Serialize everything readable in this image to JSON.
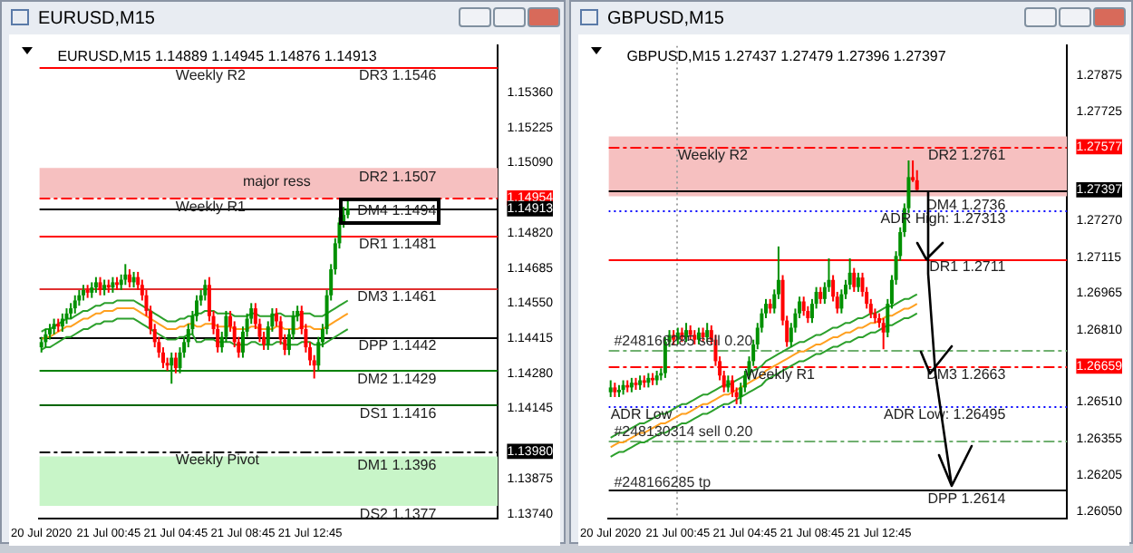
{
  "chart_data": [
    {
      "type": "candlestick",
      "title": "EURUSD,M15",
      "subtitle": "EURUSD,M15 1.14889 1.14945 1.14876 1.14913",
      "categories": [
        "20 Jul 2020",
        null,
        null,
        null,
        null,
        null,
        null,
        null,
        null,
        null,
        null,
        null,
        null,
        null,
        null,
        null,
        "21 Jul 00:45",
        null,
        null,
        null,
        null,
        null,
        null,
        null,
        null,
        null,
        null,
        null,
        null,
        null,
        null,
        null,
        "21 Jul 04:45",
        null,
        null,
        null,
        null,
        null,
        null,
        null,
        null,
        null,
        null,
        null,
        null,
        null,
        null,
        null,
        "21 Jul 08:45",
        null,
        null,
        null,
        null,
        null,
        null,
        null,
        null,
        null,
        null,
        null,
        null,
        null,
        null,
        null,
        "21 Jul 12:45",
        null,
        null,
        null,
        null,
        null,
        null,
        null,
        null,
        null
      ],
      "ohlc": [
        [
          1.1438,
          1.1442,
          1.1436,
          1.144
        ],
        [
          1.144,
          1.1445,
          1.1438,
          1.1443
        ],
        [
          1.1443,
          1.1447,
          1.1441,
          1.1445
        ],
        [
          1.1445,
          1.1449,
          1.1443,
          1.1447
        ],
        [
          1.1447,
          1.1449,
          1.1444,
          1.1446
        ],
        [
          1.1446,
          1.1451,
          1.1444,
          1.1449
        ],
        [
          1.1449,
          1.1453,
          1.1447,
          1.1451
        ],
        [
          1.1451,
          1.1455,
          1.1449,
          1.1453
        ],
        [
          1.1453,
          1.1458,
          1.1451,
          1.1456
        ],
        [
          1.1456,
          1.146,
          1.1454,
          1.1458
        ],
        [
          1.1458,
          1.1462,
          1.1456,
          1.146
        ],
        [
          1.146,
          1.1462,
          1.1457,
          1.1459
        ],
        [
          1.1459,
          1.1463,
          1.1457,
          1.1461
        ],
        [
          1.1461,
          1.1465,
          1.1459,
          1.1463
        ],
        [
          1.1463,
          1.1465,
          1.1458,
          1.146
        ],
        [
          1.146,
          1.1464,
          1.1458,
          1.1462
        ],
        [
          1.1462,
          1.1464,
          1.1459,
          1.1461
        ],
        [
          1.1461,
          1.1465,
          1.1459,
          1.1463
        ],
        [
          1.1463,
          1.1465,
          1.146,
          1.1462
        ],
        [
          1.1462,
          1.1466,
          1.146,
          1.1464
        ],
        [
          1.1464,
          1.147,
          1.1462,
          1.1466
        ],
        [
          1.1466,
          1.1468,
          1.1461,
          1.1463
        ],
        [
          1.1463,
          1.1467,
          1.1461,
          1.1465
        ],
        [
          1.1465,
          1.1467,
          1.146,
          1.1462
        ],
        [
          1.1462,
          1.1464,
          1.1456,
          1.1458
        ],
        [
          1.1458,
          1.146,
          1.145,
          1.1452
        ],
        [
          1.1452,
          1.1454,
          1.1443,
          1.1445
        ],
        [
          1.1445,
          1.1447,
          1.1438,
          1.144
        ],
        [
          1.144,
          1.1442,
          1.1434,
          1.1436
        ],
        [
          1.1436,
          1.1438,
          1.143,
          1.1432
        ],
        [
          1.1432,
          1.1434,
          1.1429,
          1.1431
        ],
        [
          1.1431,
          1.1436,
          1.1424,
          1.1434
        ],
        [
          1.1434,
          1.1436,
          1.1428,
          1.143
        ],
        [
          1.143,
          1.1438,
          1.1428,
          1.1436
        ],
        [
          1.1436,
          1.1442,
          1.1434,
          1.144
        ],
        [
          1.144,
          1.1447,
          1.1438,
          1.1445
        ],
        [
          1.1445,
          1.1452,
          1.1443,
          1.145
        ],
        [
          1.145,
          1.1458,
          1.1448,
          1.1456
        ],
        [
          1.1456,
          1.146,
          1.1454,
          1.1458
        ],
        [
          1.1458,
          1.1464,
          1.1456,
          1.1462
        ],
        [
          1.1462,
          1.1465,
          1.1448,
          1.145
        ],
        [
          1.145,
          1.1452,
          1.1443,
          1.1445
        ],
        [
          1.1445,
          1.1447,
          1.1436,
          1.1438
        ],
        [
          1.1438,
          1.1444,
          1.1436,
          1.1442
        ],
        [
          1.1442,
          1.1452,
          1.144,
          1.145
        ],
        [
          1.145,
          1.1452,
          1.1444,
          1.1446
        ],
        [
          1.1446,
          1.1448,
          1.1438,
          1.144
        ],
        [
          1.144,
          1.1442,
          1.1434,
          1.1436
        ],
        [
          1.1436,
          1.1446,
          1.1434,
          1.1444
        ],
        [
          1.1444,
          1.1451,
          1.1442,
          1.1449
        ],
        [
          1.1449,
          1.1455,
          1.1447,
          1.1453
        ],
        [
          1.1453,
          1.1455,
          1.1445,
          1.1447
        ],
        [
          1.1447,
          1.1449,
          1.144,
          1.1442
        ],
        [
          1.1442,
          1.1444,
          1.1437,
          1.1439
        ],
        [
          1.1439,
          1.1448,
          1.1437,
          1.1446
        ],
        [
          1.1446,
          1.1453,
          1.1444,
          1.1451
        ],
        [
          1.1451,
          1.1453,
          1.1446,
          1.1448
        ],
        [
          1.1448,
          1.145,
          1.1439,
          1.1441
        ],
        [
          1.1441,
          1.1443,
          1.1435,
          1.1437
        ],
        [
          1.1437,
          1.1445,
          1.1435,
          1.1443
        ],
        [
          1.1443,
          1.1452,
          1.1441,
          1.145
        ],
        [
          1.145,
          1.1454,
          1.1448,
          1.1452
        ],
        [
          1.1452,
          1.1454,
          1.1443,
          1.1445
        ],
        [
          1.1445,
          1.1447,
          1.1436,
          1.1438
        ],
        [
          1.1438,
          1.144,
          1.1431,
          1.1433
        ],
        [
          1.1433,
          1.1435,
          1.1426,
          1.1431
        ],
        [
          1.1431,
          1.1442,
          1.1429,
          1.144
        ],
        [
          1.144,
          1.1447,
          1.1438,
          1.1445
        ],
        [
          1.1445,
          1.146,
          1.1443,
          1.1458
        ],
        [
          1.1458,
          1.147,
          1.1456,
          1.1468
        ],
        [
          1.1468,
          1.148,
          1.1466,
          1.1478
        ],
        [
          1.1478,
          1.1488,
          1.1476,
          1.1486
        ],
        [
          1.1486,
          1.1492,
          1.1484,
          1.14889
        ],
        [
          1.14889,
          1.14945,
          1.14876,
          1.14913
        ]
      ],
      "colors": [
        "#009000",
        "#009000",
        "#009000",
        "#009000",
        "#ff0000",
        "#009000",
        "#009000",
        "#009000",
        "#009000",
        "#009000",
        "#009000",
        "#ff0000",
        "#009000",
        "#009000",
        "#ff0000",
        "#009000",
        "#ff0000",
        "#009000",
        "#ff0000",
        "#009000",
        "#009000",
        "#ff0000",
        "#009000",
        "#ff0000",
        "#ff0000",
        "#ff0000",
        "#ff0000",
        "#ff0000",
        "#ff0000",
        "#ff0000",
        "#ff0000",
        "#009000",
        "#ff0000",
        "#009000",
        "#009000",
        "#009000",
        "#009000",
        "#009000",
        "#009000",
        "#009000",
        "#ff0000",
        "#ff0000",
        "#ff0000",
        "#009000",
        "#009000",
        "#ff0000",
        "#ff0000",
        "#ff0000",
        "#009000",
        "#009000",
        "#009000",
        "#ff0000",
        "#ff0000",
        "#ff0000",
        "#009000",
        "#009000",
        "#ff0000",
        "#ff0000",
        "#ff0000",
        "#009000",
        "#009000",
        "#009000",
        "#ff0000",
        "#ff0000",
        "#ff0000",
        "#ff0000",
        "#009000",
        "#009000",
        "#009000",
        "#009000",
        "#009000",
        "#009000",
        "#009000",
        "#009000"
      ],
      "series": [
        {
          "type": "line",
          "color": "#2ca02c",
          "values": [
            1.1444,
            1.1445,
            1.1445,
            1.1446,
            1.1447,
            1.1448,
            1.1449,
            1.1449,
            1.145,
            1.1451,
            1.1452,
            1.1452,
            1.1453,
            1.1454,
            1.1454,
            1.1455,
            1.1455,
            1.1455,
            1.1456,
            1.1456,
            1.1456,
            1.1456,
            1.1456,
            1.1455,
            1.1454,
            1.1453,
            1.1452,
            1.1451,
            1.145,
            1.1449,
            1.1448,
            1.1448,
            1.1448,
            1.1449,
            1.1449,
            1.145,
            1.145,
            1.1451,
            1.1451,
            1.1452,
            1.1452,
            1.1452,
            1.1451,
            1.1451,
            1.1451,
            1.1451,
            1.145,
            1.145,
            1.145,
            1.145,
            1.1451,
            1.1451,
            1.145,
            1.145,
            1.145,
            1.145,
            1.1451,
            1.1451,
            1.145,
            1.145,
            1.145,
            1.145,
            1.1451,
            1.1451,
            1.1451,
            1.145,
            1.145,
            1.145,
            1.1451,
            1.1452,
            1.1453,
            1.1454,
            1.1455,
            1.1456
          ]
        },
        {
          "type": "line",
          "color": "#ffa020",
          "values": [
            1.1441,
            1.1442,
            1.1442,
            1.1443,
            1.1444,
            1.1445,
            1.1446,
            1.1446,
            1.1447,
            1.1448,
            1.1449,
            1.1449,
            1.145,
            1.1451,
            1.1451,
            1.1452,
            1.1452,
            1.1452,
            1.1453,
            1.1453,
            1.1453,
            1.1453,
            1.1453,
            1.1452,
            1.1451,
            1.145,
            1.1449,
            1.1448,
            1.1447,
            1.1446,
            1.1445,
            1.1445,
            1.1445,
            1.1446,
            1.1446,
            1.1447,
            1.1447,
            1.1446,
            1.1446,
            1.1447,
            1.1447,
            1.1447,
            1.1446,
            1.1446,
            1.1446,
            1.1446,
            1.1445,
            1.1445,
            1.1445,
            1.1445,
            1.1446,
            1.1446,
            1.1445,
            1.1445,
            1.1445,
            1.1445,
            1.1446,
            1.1446,
            1.1445,
            1.1445,
            1.1445,
            1.1445,
            1.1446,
            1.1446,
            1.1446,
            1.1445,
            1.1445,
            1.1445,
            1.1446,
            1.1447,
            1.1448,
            1.1449,
            1.145,
            1.1451
          ]
        },
        {
          "type": "line",
          "color": "#2ca02c",
          "values": [
            1.1437,
            1.1438,
            1.1438,
            1.1439,
            1.144,
            1.1441,
            1.1442,
            1.1442,
            1.1443,
            1.1444,
            1.1445,
            1.1445,
            1.1446,
            1.1447,
            1.1447,
            1.1448,
            1.1448,
            1.1448,
            1.1449,
            1.1449,
            1.1449,
            1.1449,
            1.1449,
            1.1448,
            1.1447,
            1.1446,
            1.1445,
            1.1444,
            1.1443,
            1.1442,
            1.1441,
            1.1441,
            1.1441,
            1.1442,
            1.1442,
            1.1443,
            1.1443,
            1.144,
            1.144,
            1.1441,
            1.1441,
            1.1441,
            1.144,
            1.144,
            1.144,
            1.144,
            1.1439,
            1.1439,
            1.1439,
            1.1439,
            1.144,
            1.144,
            1.1439,
            1.1439,
            1.1439,
            1.1439,
            1.144,
            1.144,
            1.1439,
            1.1439,
            1.1439,
            1.1439,
            1.144,
            1.144,
            1.144,
            1.1439,
            1.1439,
            1.1439,
            1.144,
            1.1441,
            1.1442,
            1.1443,
            1.1444,
            1.1445
          ]
        }
      ],
      "ylim": [
        1.1372,
        1.1554
      ],
      "yticks": [
        {
          "value": 1.1536,
          "label": "1.15360"
        },
        1.15225,
        {
          "value": 1.1509,
          "label": "1.15090"
        },
        {
          "value": 1.14954,
          "label": "1.14954"
        },
        {
          "value": 1.14913,
          "label": "1.14913"
        },
        {
          "value": 1.1482,
          "label": "1.14820"
        },
        1.14685,
        {
          "value": 1.1455,
          "label": "1.14550"
        },
        1.14415,
        {
          "value": 1.1428,
          "label": "1.14280"
        },
        1.14145,
        {
          "value": 1.1398,
          "label": "1.13980"
        },
        1.13875,
        {
          "value": 1.1374,
          "label": "1.13740"
        }
      ],
      "bands": [
        {
          "axis": "y",
          "from": 1.14954,
          "to": 1.1507,
          "color": "#f6c0c0"
        },
        {
          "axis": "y",
          "from": 1.1377,
          "to": 1.1396,
          "color": "#c8f5c8"
        }
      ],
      "ref_lines": [
        {
          "axis": "y",
          "value": 1.1546,
          "color": "#ff0000",
          "line_style": "solid"
        },
        {
          "axis": "y",
          "value": 1.14954,
          "color": "#ff0000",
          "line_style": "dashed"
        },
        {
          "axis": "y",
          "value": 1.14913,
          "color": "#000000",
          "line_style": "solid"
        },
        {
          "axis": "y",
          "value": 1.1481,
          "color": "#ff0000",
          "line_style": "solid"
        },
        {
          "axis": "y",
          "value": 1.1461,
          "color": "#e03030",
          "line_style": "solid"
        },
        {
          "axis": "y",
          "value": 1.1442,
          "color": "#000000",
          "line_style": "solid"
        },
        {
          "axis": "y",
          "value": 1.1429,
          "color": "#008000",
          "line_style": "solid"
        },
        {
          "axis": "y",
          "value": 1.1416,
          "color": "#006400",
          "line_style": "solid"
        },
        {
          "axis": "y",
          "value": 1.1398,
          "color": "#000000",
          "line_style": "dashed"
        }
      ],
      "annotations": [
        {
          "text": "Weekly R2",
          "x": "21 Jul 04:45",
          "y": 1.1546
        },
        {
          "text": "DR3 1.1546",
          "y": 1.1546
        },
        {
          "text": "DR2 1.1507",
          "y": 1.1507
        },
        {
          "text": "major ress",
          "x": "21 Jul 08:45",
          "y": 1.1505
        },
        {
          "text": "Weekly R1",
          "x": "21 Jul 04:45",
          "y": 1.14954
        },
        {
          "text": "DM4 1.1494",
          "y": 1.1494
        },
        {
          "text": "DR1 1.1481",
          "y": 1.1481
        },
        {
          "text": "DM3 1.1461",
          "y": 1.1461
        },
        {
          "text": "DPP 1.1442",
          "y": 1.1442
        },
        {
          "text": "DM2 1.1429",
          "y": 1.1429
        },
        {
          "text": "DS1 1.1416",
          "y": 1.1416
        },
        {
          "text": "Weekly Pivot",
          "x": "21 Jul 04:45",
          "y": 1.1398
        },
        {
          "text": "DM1 1.1396",
          "y": 1.1396
        },
        {
          "text": "DS2 1.1377",
          "y": 1.1377
        }
      ]
    },
    {
      "type": "candlestick",
      "title": "GBPUSD,M15",
      "subtitle": "GBPUSD,M15 1.27437 1.27479 1.27396 1.27397",
      "categories": [
        "20 Jul 2020",
        null,
        null,
        null,
        null,
        null,
        null,
        null,
        null,
        null,
        null,
        null,
        null,
        null,
        null,
        null,
        "21 Jul 00:45",
        null,
        null,
        null,
        null,
        null,
        null,
        null,
        null,
        null,
        null,
        null,
        null,
        null,
        null,
        null,
        "21 Jul 04:45",
        null,
        null,
        null,
        null,
        null,
        null,
        null,
        null,
        null,
        null,
        null,
        null,
        null,
        null,
        null,
        "21 Jul 08:45",
        null,
        null,
        null,
        null,
        null,
        null,
        null,
        null,
        null,
        null,
        null,
        null,
        null,
        null,
        null,
        "21 Jul 12:45",
        null,
        null,
        null,
        null,
        null,
        null,
        null,
        null,
        null
      ],
      "ohlc": [
        [
          1.2655,
          1.266,
          1.2653,
          1.2657
        ],
        [
          1.2657,
          1.2659,
          1.2653,
          1.2655
        ],
        [
          1.2655,
          1.2658,
          1.2653,
          1.2656
        ],
        [
          1.2656,
          1.266,
          1.2654,
          1.2658
        ],
        [
          1.2658,
          1.266,
          1.2655,
          1.2657
        ],
        [
          1.2657,
          1.2661,
          1.2655,
          1.2659
        ],
        [
          1.2659,
          1.2661,
          1.2656,
          1.2658
        ],
        [
          1.2658,
          1.2662,
          1.2656,
          1.266
        ],
        [
          1.266,
          1.2662,
          1.2657,
          1.2659
        ],
        [
          1.2659,
          1.2663,
          1.2657,
          1.2661
        ],
        [
          1.2661,
          1.2663,
          1.2658,
          1.266
        ],
        [
          1.266,
          1.2664,
          1.2658,
          1.2662
        ],
        [
          1.2662,
          1.2665,
          1.266,
          1.2663
        ],
        [
          1.2663,
          1.2678,
          1.2661,
          1.2676
        ],
        [
          1.2676,
          1.2681,
          1.2674,
          1.2679
        ],
        [
          1.2679,
          1.2681,
          1.2675,
          1.2677
        ],
        [
          1.2677,
          1.2682,
          1.2675,
          1.268
        ],
        [
          1.268,
          1.2682,
          1.2676,
          1.2678
        ],
        [
          1.2678,
          1.2684,
          1.2676,
          1.2681
        ],
        [
          1.2681,
          1.2683,
          1.2677,
          1.2679
        ],
        [
          1.2679,
          1.2681,
          1.2675,
          1.2677
        ],
        [
          1.2677,
          1.2682,
          1.2675,
          1.268
        ],
        [
          1.268,
          1.2682,
          1.2676,
          1.2678
        ],
        [
          1.2678,
          1.2684,
          1.2676,
          1.2681
        ],
        [
          1.2681,
          1.2683,
          1.2675,
          1.2677
        ],
        [
          1.2677,
          1.2679,
          1.2666,
          1.2668
        ],
        [
          1.2668,
          1.267,
          1.266,
          1.2662
        ],
        [
          1.2662,
          1.2664,
          1.2655,
          1.2657
        ],
        [
          1.2657,
          1.2662,
          1.2655,
          1.266
        ],
        [
          1.266,
          1.2662,
          1.2653,
          1.2655
        ],
        [
          1.2655,
          1.2657,
          1.265,
          1.2653
        ],
        [
          1.2653,
          1.2659,
          1.265,
          1.2657
        ],
        [
          1.2657,
          1.2664,
          1.2655,
          1.2662
        ],
        [
          1.2662,
          1.267,
          1.266,
          1.2668
        ],
        [
          1.2668,
          1.2677,
          1.2666,
          1.2675
        ],
        [
          1.2675,
          1.2684,
          1.2673,
          1.2682
        ],
        [
          1.2682,
          1.269,
          1.268,
          1.2688
        ],
        [
          1.2688,
          1.2694,
          1.2686,
          1.2692
        ],
        [
          1.2692,
          1.2694,
          1.2688,
          1.269
        ],
        [
          1.269,
          1.2698,
          1.2688,
          1.2696
        ],
        [
          1.2696,
          1.2716,
          1.2694,
          1.2702
        ],
        [
          1.2702,
          1.2704,
          1.2683,
          1.2685
        ],
        [
          1.2685,
          1.2687,
          1.2674,
          1.2676
        ],
        [
          1.2676,
          1.2684,
          1.2674,
          1.2682
        ],
        [
          1.2682,
          1.269,
          1.268,
          1.2688
        ],
        [
          1.2688,
          1.2695,
          1.2686,
          1.2693
        ],
        [
          1.2693,
          1.2695,
          1.2687,
          1.2689
        ],
        [
          1.2689,
          1.2691,
          1.2684,
          1.2686
        ],
        [
          1.2686,
          1.2694,
          1.2684,
          1.2692
        ],
        [
          1.2692,
          1.2699,
          1.269,
          1.2697
        ],
        [
          1.2697,
          1.2699,
          1.2692,
          1.2694
        ],
        [
          1.2694,
          1.2701,
          1.2692,
          1.2699
        ],
        [
          1.2699,
          1.2711,
          1.2697,
          1.2702
        ],
        [
          1.2702,
          1.2704,
          1.2693,
          1.2695
        ],
        [
          1.2695,
          1.2697,
          1.2688,
          1.269
        ],
        [
          1.269,
          1.2698,
          1.2688,
          1.2696
        ],
        [
          1.2696,
          1.2702,
          1.2694,
          1.27
        ],
        [
          1.27,
          1.2711,
          1.2698,
          1.2705
        ],
        [
          1.2705,
          1.2707,
          1.2697,
          1.2699
        ],
        [
          1.2699,
          1.2705,
          1.2697,
          1.2703
        ],
        [
          1.2703,
          1.2705,
          1.2695,
          1.2697
        ],
        [
          1.2697,
          1.2699,
          1.269,
          1.2692
        ],
        [
          1.2692,
          1.2694,
          1.2686,
          1.2688
        ],
        [
          1.2688,
          1.269,
          1.2684,
          1.2686
        ],
        [
          1.2686,
          1.2688,
          1.2682,
          1.2684
        ],
        [
          1.2684,
          1.2686,
          1.2673,
          1.268
        ],
        [
          1.268,
          1.2694,
          1.2678,
          1.2692
        ],
        [
          1.2692,
          1.2704,
          1.269,
          1.2702
        ],
        [
          1.2702,
          1.2714,
          1.27,
          1.2712
        ],
        [
          1.2712,
          1.2724,
          1.271,
          1.2722
        ],
        [
          1.2722,
          1.2734,
          1.272,
          1.2732
        ],
        [
          1.2732,
          1.2752,
          1.273,
          1.2745
        ],
        [
          1.2745,
          1.2752,
          1.2743,
          1.27437
        ],
        [
          1.27437,
          1.27479,
          1.27396,
          1.27397
        ]
      ],
      "colors": [
        "#009000",
        "#ff0000",
        "#009000",
        "#009000",
        "#ff0000",
        "#009000",
        "#ff0000",
        "#009000",
        "#ff0000",
        "#009000",
        "#ff0000",
        "#009000",
        "#009000",
        "#009000",
        "#009000",
        "#ff0000",
        "#009000",
        "#ff0000",
        "#009000",
        "#ff0000",
        "#ff0000",
        "#009000",
        "#ff0000",
        "#009000",
        "#ff0000",
        "#ff0000",
        "#ff0000",
        "#ff0000",
        "#009000",
        "#ff0000",
        "#ff0000",
        "#009000",
        "#009000",
        "#009000",
        "#009000",
        "#009000",
        "#009000",
        "#009000",
        "#ff0000",
        "#009000",
        "#009000",
        "#ff0000",
        "#ff0000",
        "#009000",
        "#009000",
        "#009000",
        "#ff0000",
        "#ff0000",
        "#009000",
        "#009000",
        "#ff0000",
        "#009000",
        "#009000",
        "#ff0000",
        "#ff0000",
        "#009000",
        "#009000",
        "#009000",
        "#ff0000",
        "#009000",
        "#ff0000",
        "#ff0000",
        "#ff0000",
        "#ff0000",
        "#ff0000",
        "#ff0000",
        "#009000",
        "#009000",
        "#009000",
        "#009000",
        "#009000",
        "#009000",
        "#ff0000",
        "#ff0000"
      ],
      "series": [
        {
          "type": "line",
          "color": "#2ca02c",
          "values": [
            1.2636,
            1.2637,
            1.2638,
            1.2638,
            1.2639,
            1.264,
            1.2641,
            1.2642,
            1.2642,
            1.2643,
            1.2644,
            1.2645,
            1.2646,
            1.2646,
            1.2647,
            1.2648,
            1.2649,
            1.265,
            1.265,
            1.2651,
            1.2652,
            1.2653,
            1.2654,
            1.2654,
            1.2655,
            1.2656,
            1.2657,
            1.2658,
            1.2658,
            1.2659,
            1.266,
            1.2661,
            1.2662,
            1.2663,
            1.2664,
            1.2665,
            1.2666,
            1.2668,
            1.2669,
            1.267,
            1.2671,
            1.2672,
            1.2673,
            1.2674,
            1.2675,
            1.2676,
            1.2676,
            1.2677,
            1.2678,
            1.2679,
            1.2679,
            1.268,
            1.2681,
            1.2682,
            1.2682,
            1.2683,
            1.2684,
            1.2684,
            1.2685,
            1.2686,
            1.2686,
            1.2687,
            1.2688,
            1.2688,
            1.2689,
            1.269,
            1.2691,
            1.2691,
            1.2692,
            1.2693,
            1.2694,
            1.2694,
            1.2695,
            1.2696
          ]
        },
        {
          "type": "line",
          "color": "#ffa020",
          "values": [
            1.2632,
            1.2633,
            1.2634,
            1.2634,
            1.2635,
            1.2636,
            1.2637,
            1.2638,
            1.2638,
            1.2639,
            1.264,
            1.2641,
            1.2642,
            1.2642,
            1.2643,
            1.2644,
            1.2645,
            1.2646,
            1.2646,
            1.2647,
            1.2648,
            1.2649,
            1.265,
            1.265,
            1.2651,
            1.2652,
            1.2653,
            1.2654,
            1.2654,
            1.2655,
            1.2656,
            1.2657,
            1.2658,
            1.2659,
            1.266,
            1.2661,
            1.2662,
            1.2664,
            1.2665,
            1.2666,
            1.2667,
            1.2668,
            1.2669,
            1.267,
            1.2671,
            1.2672,
            1.2672,
            1.2673,
            1.2674,
            1.2675,
            1.2675,
            1.2676,
            1.2677,
            1.2678,
            1.2678,
            1.2679,
            1.268,
            1.268,
            1.2681,
            1.2682,
            1.2682,
            1.2683,
            1.2684,
            1.2684,
            1.2685,
            1.2686,
            1.2687,
            1.2687,
            1.2688,
            1.2689,
            1.269,
            1.269,
            1.2691,
            1.2692
          ]
        },
        {
          "type": "line",
          "color": "#2ca02c",
          "values": [
            1.2628,
            1.2629,
            1.263,
            1.263,
            1.2631,
            1.2632,
            1.2633,
            1.2634,
            1.2634,
            1.2635,
            1.2636,
            1.2637,
            1.2638,
            1.2638,
            1.2639,
            1.264,
            1.2641,
            1.2642,
            1.2642,
            1.2643,
            1.2644,
            1.2645,
            1.2646,
            1.2646,
            1.2647,
            1.2648,
            1.2649,
            1.265,
            1.265,
            1.2651,
            1.2652,
            1.2653,
            1.2654,
            1.2655,
            1.2656,
            1.2657,
            1.2658,
            1.266,
            1.2661,
            1.2662,
            1.2663,
            1.2664,
            1.2665,
            1.2666,
            1.2667,
            1.2668,
            1.2668,
            1.2669,
            1.267,
            1.2671,
            1.2671,
            1.2672,
            1.2673,
            1.2674,
            1.2674,
            1.2675,
            1.2676,
            1.2676,
            1.2677,
            1.2678,
            1.2678,
            1.2679,
            1.268,
            1.268,
            1.2681,
            1.2682,
            1.2683,
            1.2683,
            1.2684,
            1.2685,
            1.2686,
            1.2686,
            1.2687,
            1.2688
          ]
        }
      ],
      "ylim": [
        1.2602,
        1.28
      ],
      "yticks": [
        1.27875,
        1.27725,
        1.27577,
        1.27397,
        {
          "value": 1.2727,
          "label": "1.27270"
        },
        1.27115,
        1.26965,
        {
          "value": 1.2681,
          "label": "1.26810"
        },
        1.26659,
        {
          "value": 1.2651,
          "label": "1.26510"
        },
        1.26355,
        1.26205,
        {
          "value": 1.2605,
          "label": "1.26050"
        }
      ],
      "bands": [
        {
          "axis": "y",
          "from": 1.2737,
          "to": 1.2762,
          "color": "#f6c0c0"
        }
      ],
      "ref_lines": [
        {
          "axis": "x",
          "value": "21 Jul 00:45",
          "color": "#a0a0a0",
          "line_style": "dotted"
        },
        {
          "axis": "y",
          "value": 1.27577,
          "color": "#ff0000",
          "line_style": "dashed"
        },
        {
          "axis": "y",
          "value": 1.27397,
          "color": "#000000",
          "line_style": "solid"
        },
        {
          "axis": "y",
          "value": 1.27313,
          "color": "#0000ff",
          "line_style": "dotted"
        },
        {
          "axis": "y",
          "value": 1.2711,
          "color": "#ff0000",
          "line_style": "solid"
        },
        {
          "axis": "y",
          "value": 1.2673,
          "color": "#70b070",
          "line_style": "dashed",
          "label": "#248166285 sell 0.20"
        },
        {
          "axis": "y",
          "value": 1.26659,
          "color": "#ff0000",
          "line_style": "dashed"
        },
        {
          "axis": "y",
          "value": 1.26495,
          "color": "#0000ff",
          "line_style": "dotted"
        },
        {
          "axis": "y",
          "value": 1.2635,
          "color": "#70b070",
          "line_style": "dashed",
          "label": "#248130314 sell 0.20"
        },
        {
          "axis": "y",
          "value": 1.2614,
          "color": "#000000",
          "line_style": "solid",
          "label": "#248166285 tp"
        }
      ],
      "annotations": [
        {
          "text": "Weekly R2",
          "x": "21 Jul 00:45",
          "y": 1.27577
        },
        {
          "text": "DR2 1.2761",
          "y": 1.27577
        },
        {
          "text": "DM4 1.2736",
          "y": 1.2737
        },
        {
          "text": "ADR High: 1.27313",
          "y": 1.27313
        },
        {
          "text": "DR1 1.2711",
          "y": 1.2711
        },
        {
          "text": "Weekly R1",
          "x": "21 Jul 04:45",
          "y": 1.26659
        },
        {
          "text": "DM3 1.2663",
          "y": 1.26659
        },
        {
          "text": "ADR Low",
          "x": "20 Jul 2020",
          "y": 1.26495
        },
        {
          "text": "ADR Low: 1.26495",
          "y": 1.26495
        },
        {
          "text": "DPP 1.2614",
          "y": 1.2614
        }
      ]
    }
  ]
}
